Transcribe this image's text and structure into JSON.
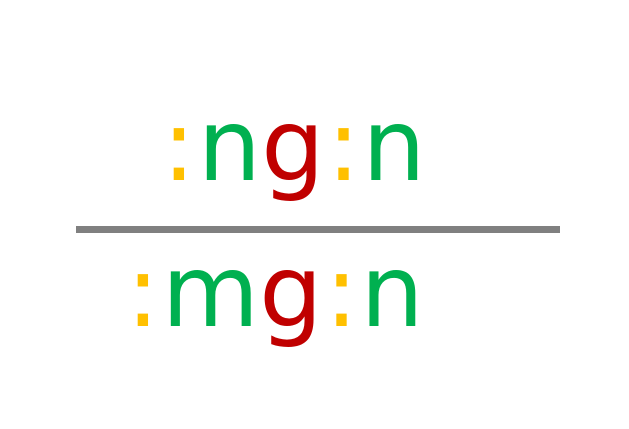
{
  "colors": {
    "colon": "#ffc000",
    "letter_green": "#00b050",
    "letter_red": "#c00000",
    "divider": "#808080"
  },
  "numerator": {
    "tokens": [
      {
        "text": ":",
        "color": "colon"
      },
      {
        "text": "n",
        "color": "letter_green"
      },
      {
        "text": "g",
        "color": "letter_red"
      },
      {
        "text": ":",
        "color": "colon"
      },
      {
        "text": "n",
        "color": "letter_green"
      }
    ]
  },
  "denominator": {
    "tokens": [
      {
        "text": ":",
        "color": "colon"
      },
      {
        "text": "m",
        "color": "letter_green"
      },
      {
        "text": "g",
        "color": "letter_red"
      },
      {
        "text": ":",
        "color": "colon"
      },
      {
        "text": "n",
        "color": "letter_green"
      }
    ]
  }
}
